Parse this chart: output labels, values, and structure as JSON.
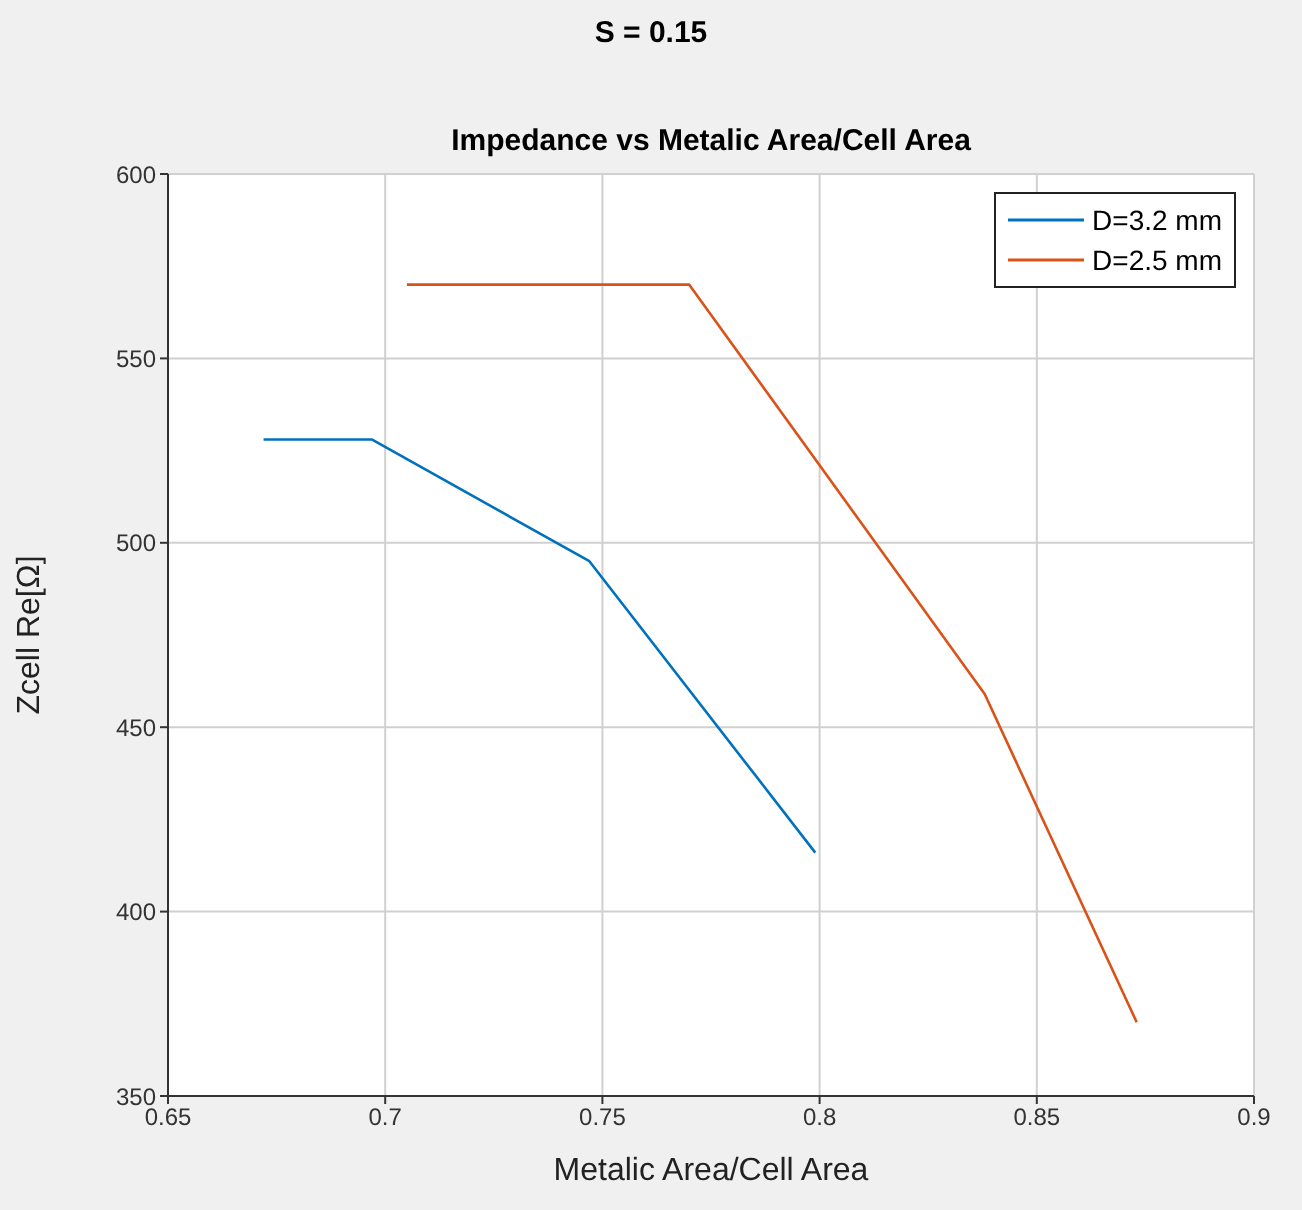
{
  "chart_data": {
    "type": "line",
    "title": "S = 0.15",
    "subtitle": "Impedance vs Metalic Area/Cell Area",
    "xlabel": "Metalic Area/Cell Area",
    "ylabel": "Zcell Re[Ω]",
    "xlim": [
      0.65,
      0.9
    ],
    "xticks": [
      0.65,
      0.7,
      0.75,
      0.8,
      0.85,
      0.9
    ],
    "ylim": [
      350,
      600
    ],
    "yticks": [
      350,
      400,
      450,
      500,
      550,
      600
    ],
    "grid": true,
    "legend": "top right",
    "marker": "none",
    "line_style": "solid",
    "series": [
      {
        "name": "D=3.2 mm",
        "color": "#0072bd",
        "x": [
          0.672,
          0.697,
          0.747,
          0.799
        ],
        "values": [
          528,
          528,
          495,
          416
        ]
      },
      {
        "name": "D=2.5 mm",
        "color": "#d95319",
        "x": [
          0.705,
          0.77,
          0.838,
          0.873
        ],
        "values": [
          570,
          570,
          459,
          370
        ]
      }
    ]
  }
}
